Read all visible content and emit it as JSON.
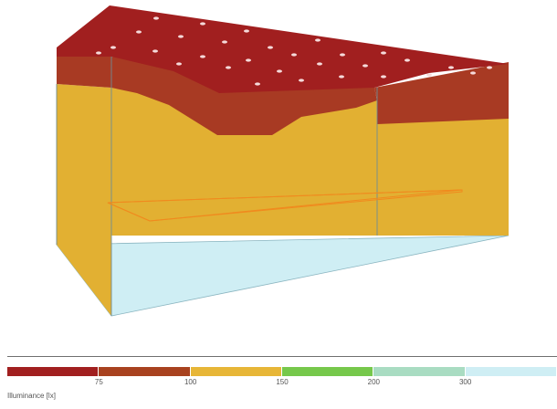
{
  "view": {
    "colors": {
      "ceiling": "#a11f1f",
      "band_75": "#a83a23",
      "band_100_150": "#e2b032",
      "band_150_200": "#7ac84a",
      "floor": "#cfeef4",
      "wall_outline": "#7a7a7a",
      "work_plane": "#f08a1e",
      "light_spot": "#f7e6e6"
    }
  },
  "legend": {
    "segments": [
      {
        "color": "#a11f1f",
        "tick_label": "75"
      },
      {
        "color": "#a8421f",
        "tick_label": "100"
      },
      {
        "color": "#e7b637",
        "tick_label": "150"
      },
      {
        "color": "#76c84b",
        "tick_label": "200"
      },
      {
        "color": "#a9dcc2",
        "tick_label": "300"
      },
      {
        "color": "#cfeef4",
        "tick_label": ""
      }
    ],
    "title": "Illuminance [lx]"
  }
}
